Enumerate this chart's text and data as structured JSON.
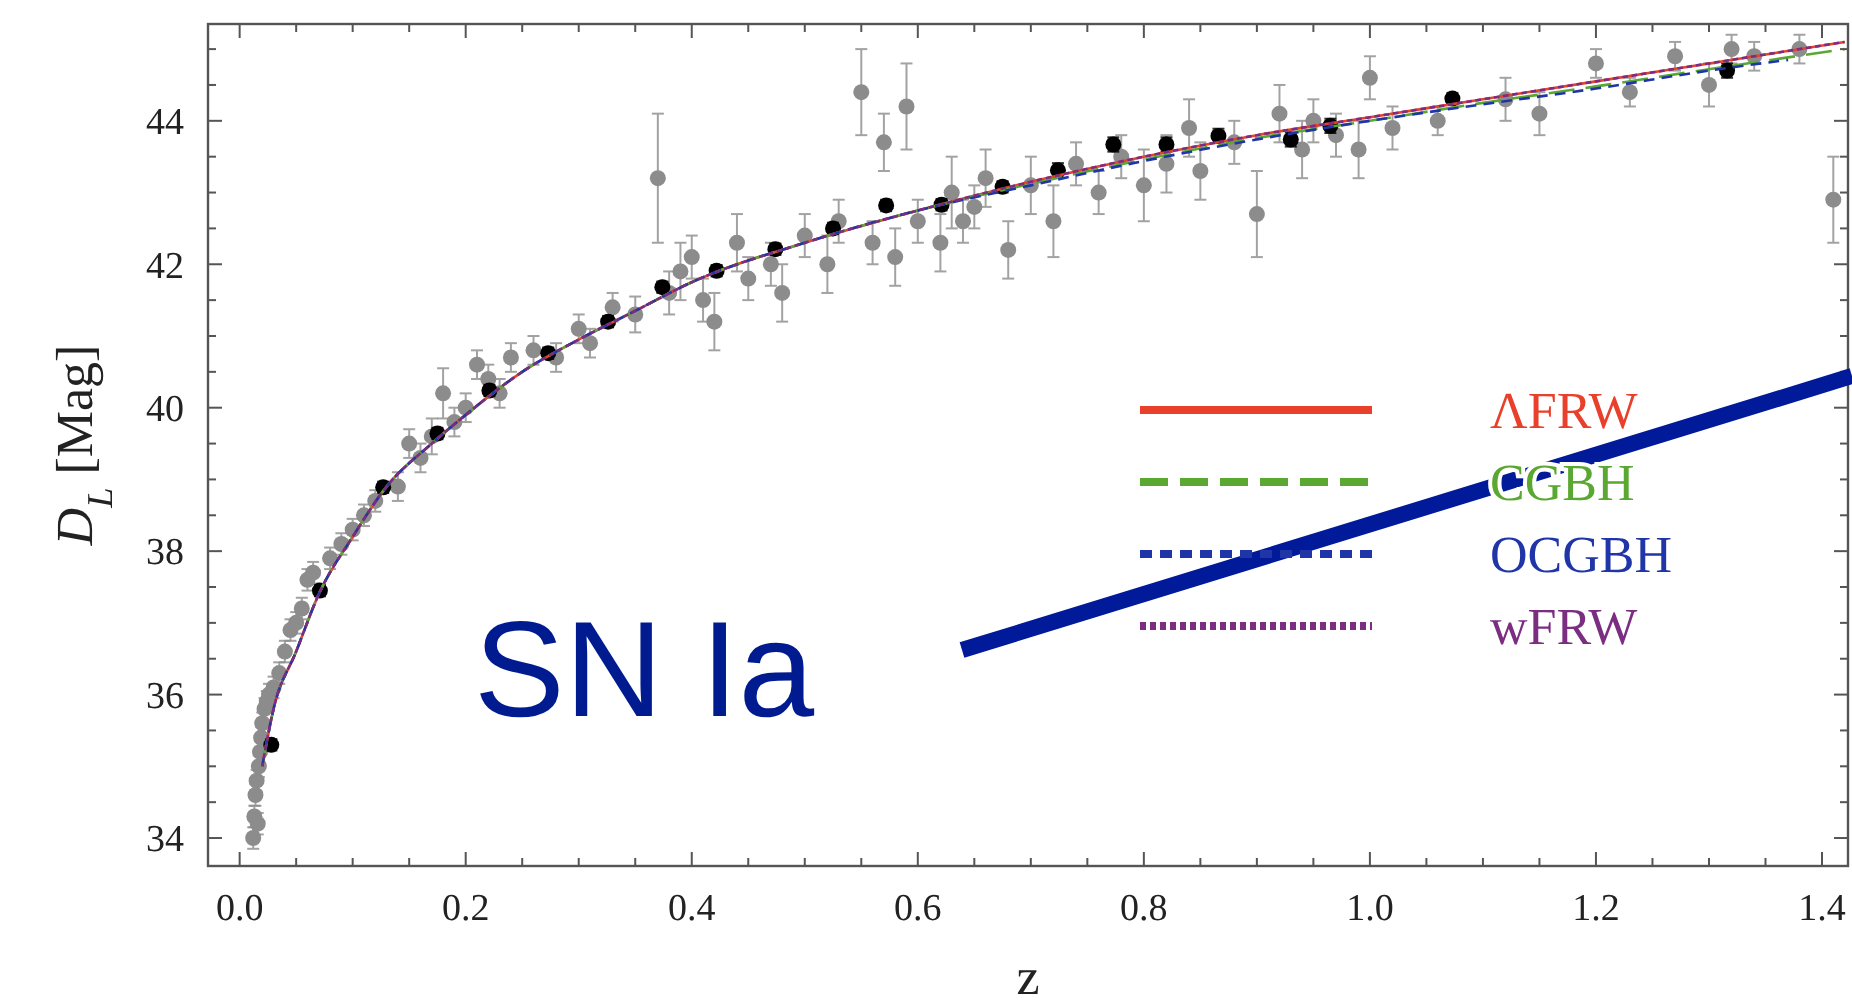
{
  "chart_data": {
    "type": "scatter",
    "xlabel": "z",
    "ylabel": "D$_{L}$ [Mag]",
    "annotations": [
      "SN Ia"
    ],
    "xlim": [
      -0.028,
      1.423
    ],
    "ylim": [
      33.61,
      45.35
    ],
    "xticks": [
      {
        "value": 0,
        "label": "0.0"
      },
      {
        "value": 0.05,
        "label": null
      },
      {
        "value": 0.1,
        "label": null
      },
      {
        "value": 0.15,
        "label": null
      },
      {
        "value": 0.2,
        "label": "0.2"
      },
      {
        "value": 0.25,
        "label": null
      },
      {
        "value": 0.3,
        "label": null
      },
      {
        "value": 0.35,
        "label": null
      },
      {
        "value": 0.4,
        "label": "0.4"
      },
      {
        "value": 0.45,
        "label": null
      },
      {
        "value": 0.5,
        "label": null
      },
      {
        "value": 0.55,
        "label": null
      },
      {
        "value": 0.6,
        "label": "0.6"
      },
      {
        "value": 0.65,
        "label": null
      },
      {
        "value": 0.7,
        "label": null
      },
      {
        "value": 0.75,
        "label": null
      },
      {
        "value": 0.8,
        "label": "0.8"
      },
      {
        "value": 0.85,
        "label": null
      },
      {
        "value": 0.9,
        "label": null
      },
      {
        "value": 0.95,
        "label": null
      },
      {
        "value": 1.0,
        "label": "1.0"
      },
      {
        "value": 1.05,
        "label": null
      },
      {
        "value": 1.1,
        "label": null
      },
      {
        "value": 1.15,
        "label": null
      },
      {
        "value": 1.2,
        "label": "1.2"
      },
      {
        "value": 1.25,
        "label": null
      },
      {
        "value": 1.3,
        "label": null
      },
      {
        "value": 1.35,
        "label": null
      },
      {
        "value": 1.4,
        "label": "1.4"
      }
    ],
    "yticks": [
      34,
      {
        "value": 34.5,
        "label": null
      },
      {
        "value": 35,
        "label": null
      },
      {
        "value": 35.5,
        "label": null
      },
      36,
      {
        "value": 36.5,
        "label": null
      },
      {
        "value": 37,
        "label": null
      },
      {
        "value": 37.5,
        "label": null
      },
      38,
      {
        "value": 38.5,
        "label": null
      },
      {
        "value": 39,
        "label": null
      },
      {
        "value": 39.5,
        "label": null
      },
      40,
      {
        "value": 40.5,
        "label": null
      },
      {
        "value": 41,
        "label": null
      },
      {
        "value": 41.5,
        "label": null
      },
      42,
      {
        "value": 42.5,
        "label": null
      },
      {
        "value": 43,
        "label": null
      },
      {
        "value": 43.5,
        "label": null
      },
      44,
      {
        "value": 44.5,
        "label": null
      },
      {
        "value": 45,
        "label": null
      }
    ],
    "grid": false,
    "legend": "right",
    "series": [
      {
        "marker": "circle",
        "color": "#8c8c8c",
        "x": [
          0.012,
          0.013,
          0.014,
          0.015,
          0.016,
          0.017,
          0.018,
          0.019,
          0.02,
          0.022,
          0.024,
          0.026,
          0.03,
          0.035,
          0.04,
          0.045,
          0.05,
          0.055,
          0.06,
          0.065,
          0.08,
          0.09,
          0.1,
          0.11,
          0.12,
          0.14,
          0.15,
          0.16,
          0.17,
          0.18,
          0.19,
          0.2,
          0.21,
          0.22,
          0.23,
          0.24,
          0.26,
          0.28,
          0.3,
          0.31,
          0.33,
          0.35,
          0.37,
          0.38,
          0.39,
          0.4,
          0.41,
          0.42,
          0.44,
          0.45,
          0.47,
          0.48,
          0.5,
          0.52,
          0.53,
          0.55,
          0.56,
          0.57,
          0.58,
          0.59,
          0.6,
          0.62,
          0.63,
          0.64,
          0.65,
          0.66,
          0.68,
          0.7,
          0.72,
          0.74,
          0.76,
          0.78,
          0.8,
          0.82,
          0.84,
          0.85,
          0.88,
          0.9,
          0.92,
          0.94,
          0.95,
          0.97,
          0.99,
          1.0,
          1.02,
          1.06,
          1.12,
          1.15,
          1.2,
          1.23,
          1.27,
          1.3,
          1.32,
          1.34,
          1.38,
          1.41
        ],
        "values": [
          34.0,
          34.3,
          34.6,
          34.8,
          34.2,
          35.0,
          35.2,
          35.4,
          35.6,
          35.8,
          35.9,
          36.0,
          36.1,
          36.3,
          36.6,
          36.9,
          37.0,
          37.2,
          37.6,
          37.7,
          37.9,
          38.1,
          38.3,
          38.5,
          38.7,
          38.9,
          39.5,
          39.3,
          39.6,
          40.2,
          39.8,
          40.0,
          40.6,
          40.4,
          40.2,
          40.7,
          40.8,
          40.7,
          41.1,
          40.9,
          41.4,
          41.3,
          43.2,
          41.6,
          41.9,
          42.1,
          41.5,
          41.2,
          42.3,
          41.8,
          42.0,
          41.6,
          42.4,
          42.0,
          42.6,
          44.4,
          42.3,
          43.7,
          42.1,
          44.2,
          42.6,
          42.3,
          43.0,
          42.6,
          42.8,
          43.2,
          42.2,
          43.1,
          42.6,
          43.4,
          43.0,
          43.5,
          43.1,
          43.4,
          43.9,
          43.3,
          43.7,
          42.7,
          44.1,
          43.6,
          44.0,
          43.8,
          43.6,
          44.6,
          43.9,
          44.0,
          44.3,
          44.1,
          44.8,
          44.4,
          44.9,
          44.5,
          45.0,
          44.9,
          45.0,
          42.9
        ],
        "errors": [
          0.15,
          0.15,
          0.15,
          0.15,
          0.15,
          0.15,
          0.15,
          0.15,
          0.15,
          0.15,
          0.15,
          0.15,
          0.15,
          0.15,
          0.15,
          0.15,
          0.15,
          0.15,
          0.15,
          0.15,
          0.15,
          0.15,
          0.15,
          0.15,
          0.15,
          0.2,
          0.2,
          0.2,
          0.25,
          0.35,
          0.2,
          0.2,
          0.2,
          0.2,
          0.2,
          0.2,
          0.2,
          0.2,
          0.2,
          0.2,
          0.2,
          0.25,
          0.9,
          0.3,
          0.4,
          0.3,
          0.3,
          0.4,
          0.4,
          0.3,
          0.3,
          0.4,
          0.3,
          0.4,
          0.3,
          0.6,
          0.3,
          0.4,
          0.4,
          0.6,
          0.3,
          0.4,
          0.5,
          0.3,
          0.3,
          0.4,
          0.4,
          0.4,
          0.5,
          0.3,
          0.3,
          0.3,
          0.5,
          0.4,
          0.4,
          0.4,
          0.3,
          0.6,
          0.4,
          0.4,
          0.3,
          0.3,
          0.4,
          0.3,
          0.3,
          0.2,
          0.3,
          0.3,
          0.2,
          0.2,
          0.2,
          0.3,
          0.2,
          0.2,
          0.2,
          0.6
        ]
      },
      {
        "marker": "circle",
        "color": "#000000",
        "x": [
          0.028,
          0.071,
          0.127,
          0.175,
          0.221,
          0.273,
          0.326,
          0.374,
          0.422,
          0.474,
          0.525,
          0.572,
          0.621,
          0.675,
          0.724,
          0.773,
          0.82,
          0.866,
          0.93,
          0.965,
          1.073,
          1.316
        ],
        "values": [
          35.3,
          37.45,
          38.89,
          39.64,
          40.24,
          40.76,
          41.2,
          41.68,
          41.91,
          42.21,
          42.5,
          42.82,
          42.83,
          43.08,
          43.31,
          43.67,
          43.67,
          43.79,
          43.74,
          43.93,
          44.31,
          44.7
        ],
        "errors": [
          0.08,
          0.08,
          0.08,
          0.08,
          0.08,
          0.08,
          0.08,
          0.08,
          0.08,
          0.08,
          0.08,
          0.08,
          0.08,
          0.08,
          0.1,
          0.1,
          0.1,
          0.1,
          0.1,
          0.1,
          0.08,
          0.1
        ]
      },
      {
        "type": "line",
        "name": "ΛFRW",
        "marker": "none",
        "color": "#e8402a",
        "line_style": "solid",
        "x": [
          0.02,
          0.03,
          0.05,
          0.07,
          0.1,
          0.13,
          0.17,
          0.2,
          0.25,
          0.3,
          0.35,
          0.4,
          0.5,
          0.6,
          0.7,
          0.8,
          0.9,
          1.0,
          1.1,
          1.2,
          1.3,
          1.42
        ],
        "values": [
          35.0,
          35.8,
          36.6,
          37.4,
          38.2,
          38.9,
          39.5,
          39.9,
          40.5,
          40.95,
          41.35,
          41.75,
          42.3,
          42.75,
          43.15,
          43.5,
          43.8,
          44.05,
          44.3,
          44.55,
          44.8,
          45.1
        ]
      },
      {
        "type": "line",
        "name": "CGBH",
        "marker": "none",
        "color": "#5aa832",
        "line_style": "dashed",
        "x": [
          0.02,
          0.03,
          0.05,
          0.07,
          0.1,
          0.13,
          0.17,
          0.2,
          0.25,
          0.3,
          0.35,
          0.4,
          0.5,
          0.6,
          0.7,
          0.8,
          0.9,
          1.0,
          1.1,
          1.2,
          1.3,
          1.42
        ],
        "values": [
          35.0,
          35.8,
          36.6,
          37.4,
          38.2,
          38.9,
          39.5,
          39.9,
          40.5,
          40.95,
          41.35,
          41.75,
          42.3,
          42.75,
          43.12,
          43.46,
          43.76,
          44.0,
          44.25,
          44.48,
          44.72,
          45.0
        ]
      },
      {
        "type": "line",
        "name": "OCGBH",
        "marker": "none",
        "color": "#2035a8",
        "line_style": "dashed",
        "x": [
          0.02,
          0.03,
          0.05,
          0.07,
          0.1,
          0.13,
          0.17,
          0.2,
          0.25,
          0.3,
          0.35,
          0.4,
          0.5,
          0.6,
          0.7,
          0.8,
          0.9,
          1.0,
          1.1,
          1.2,
          1.3,
          1.37
        ],
        "values": [
          35.0,
          35.8,
          36.6,
          37.4,
          38.2,
          38.9,
          39.5,
          39.9,
          40.5,
          40.95,
          41.35,
          41.75,
          42.3,
          42.75,
          43.1,
          43.44,
          43.74,
          44.0,
          44.23,
          44.45,
          44.7,
          44.85
        ]
      },
      {
        "type": "line",
        "name": "wFRW",
        "marker": "none",
        "color": "#7b2d82",
        "line_style": "dotted",
        "x": [
          0.02,
          0.03,
          0.05,
          0.07,
          0.1,
          0.13,
          0.17,
          0.2,
          0.25,
          0.3,
          0.35,
          0.4,
          0.5,
          0.6,
          0.7,
          0.8,
          0.9,
          1.0,
          1.1,
          1.2,
          1.3,
          1.42
        ],
        "values": [
          35.0,
          35.8,
          36.6,
          37.4,
          38.2,
          38.9,
          39.5,
          39.9,
          40.5,
          40.95,
          41.35,
          41.75,
          42.3,
          42.75,
          43.15,
          43.5,
          43.8,
          44.05,
          44.3,
          44.55,
          44.8,
          45.1
        ]
      }
    ]
  }
}
